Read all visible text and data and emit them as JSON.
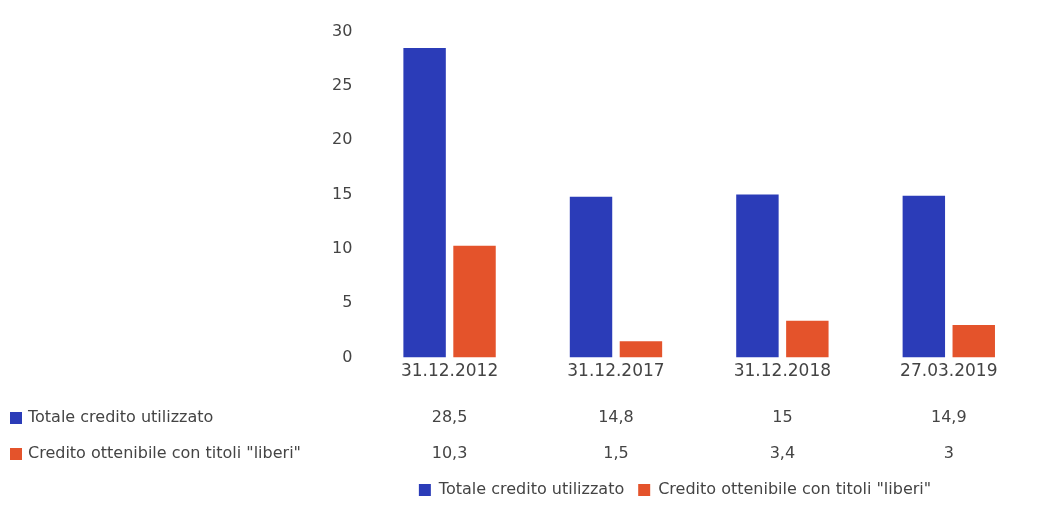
{
  "chart_data": {
    "type": "bar",
    "categories": [
      "31.12.2012",
      "31.12.2017",
      "31.12.2018",
      "27.03.2019"
    ],
    "series": [
      {
        "name": "Totale credito utilizzato",
        "color": "#2b3cb8",
        "values": [
          28.5,
          14.8,
          15,
          14.9
        ],
        "value_labels": [
          "28,5",
          "14,8",
          "15",
          "14,9"
        ]
      },
      {
        "name": "Credito ottenibile con titoli \"liberi\"",
        "color": "#e4532b",
        "values": [
          10.3,
          1.5,
          3.4,
          3
        ],
        "value_labels": [
          "10,3",
          "1,5",
          "3,4",
          "3"
        ]
      }
    ],
    "ylim": [
      0,
      30
    ],
    "yticks": [
      0,
      5,
      10,
      15,
      20,
      25,
      30
    ],
    "grid": false,
    "legend": "bottom"
  }
}
